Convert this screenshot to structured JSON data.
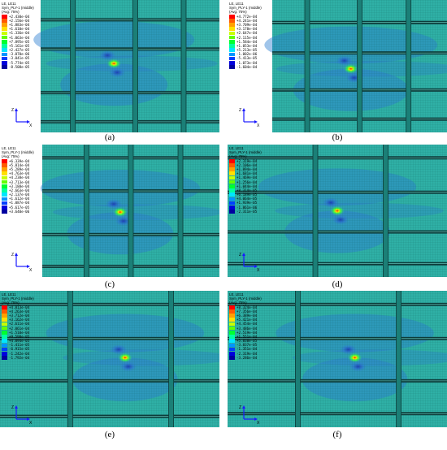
{
  "colors": {
    "mesh_background": "#2fb0a6",
    "band_blue": "#2d7fd0",
    "deep_blue": "#1f3fb8",
    "stiffener_dark": "#0c3c3a",
    "legend_scale": [
      "#ff0000",
      "#ff5a00",
      "#ffa000",
      "#ffe000",
      "#c8ff00",
      "#64ff00",
      "#00ff30",
      "#00ffa0",
      "#00e6ff",
      "#0096ff",
      "#0040ff",
      "#0000dc",
      "#0000a0"
    ]
  },
  "panels": [
    {
      "id": "a",
      "caption": "(a)",
      "header": {
        "line1": "LE, LE11",
        "line2": "Sym_PLY-1 (middle)",
        "line3": "(Avg: 75%)"
      },
      "legend": [
        "+2.430e-04",
        "+2.156e-04",
        "+1.883e-04",
        "+1.610e-04",
        "+1.336e-04",
        "+1.063e-04",
        "+7.895e-05",
        "+5.161e-05",
        "+2.427e-05",
        "-3.070e-06",
        "-3.041e-05",
        "-5.774e-05",
        "-8.508e-05"
      ],
      "triad": {
        "up": "Z",
        "right": "X"
      }
    },
    {
      "id": "b",
      "caption": "(b)",
      "header": {
        "line1": "LE, LE11",
        "line2": "Sym_PLY-1 (middle)",
        "line3": "(Avg: 75%)"
      },
      "legend": [
        "+4.772e-04",
        "+4.241e-04",
        "+3.709e-04",
        "+3.178e-04",
        "+2.647e-04",
        "+2.115e-04",
        "+1.584e-04",
        "+1.053e-04",
        "+5.213e-05",
        "-1.002e-06",
        "-5.413e-05",
        "-1.073e-04",
        "-1.604e-04"
      ],
      "triad": {
        "up": "Z",
        "right": "X"
      }
    },
    {
      "id": "c",
      "caption": "(c)",
      "header": {
        "line1": "LE, LE11",
        "line2": "Sym_PLY-1 (middle)",
        "line3": "(Avg: 75%)"
      },
      "legend": [
        "+6.339e-04",
        "+5.814e-04",
        "+5.289e-04",
        "+4.763e-04",
        "+4.238e-04",
        "+3.713e-04",
        "+3.188e-04",
        "+2.663e-04",
        "+2.137e-04",
        "+1.612e-04",
        "+1.087e-04",
        "+5.617e-05",
        "+3.640e-06"
      ],
      "triad": {
        "up": "Z",
        "right": "X"
      }
    },
    {
      "id": "d",
      "caption": "(d)",
      "header": {
        "line1": "LE, LE11",
        "line2": "Sym_PLY-1 (middle)",
        "line3": "(Avg: 75%)"
      },
      "legend": [
        "+2.319e-04",
        "+2.106e-04",
        "+1.894e-04",
        "+1.681e-04",
        "+1.469e-04",
        "+1.256e-04",
        "+1.044e-04",
        "+8.314e-05",
        "+6.189e-05",
        "+4.064e-05",
        "+1.939e-05",
        "-1.861e-06",
        "-2.311e-05"
      ],
      "triad": {
        "up": "Z",
        "right": "X"
      }
    },
    {
      "id": "e",
      "caption": "(e)",
      "header": {
        "line1": "LE, LE11",
        "line2": "Sym_PLY-1 (middle)",
        "line3": "(Avg: 75%)"
      },
      "legend": [
        "+4.813e-04",
        "+4.263e-04",
        "+3.712e-04",
        "+3.162e-04",
        "+2.611e-04",
        "+2.061e-04",
        "+1.510e-04",
        "+9.598e-05",
        "+4.094e-05",
        "-1.411e-05",
        "-6.915e-05",
        "-1.242e-04",
        "-1.792e-04"
      ],
      "triad": {
        "up": "Z",
        "right": "X"
      }
    },
    {
      "id": "f",
      "caption": "(f)",
      "header": {
        "line1": "LE, LE11",
        "line2": "Sym_PLY-1 (middle)",
        "line3": "(Avg: 75%)"
      },
      "legend": [
        "+8.324e-04",
        "+7.356e-04",
        "+6.389e-04",
        "+5.421e-04",
        "+4.454e-04",
        "+3.486e-04",
        "+2.519e-04",
        "+1.551e-04",
        "+5.838e-05",
        "-3.837e-05",
        "-1.351e-04",
        "-2.319e-04",
        "-3.286e-04"
      ],
      "triad": {
        "up": "Z",
        "right": "X"
      }
    }
  ]
}
